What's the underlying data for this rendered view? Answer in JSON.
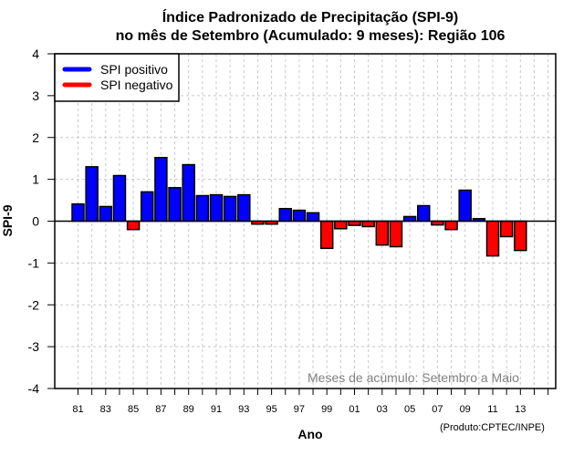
{
  "chart_data": {
    "type": "bar",
    "title": "Índice Padronizado de Precipitação (SPI-9)",
    "subtitle": "no mês de Setembro (Acumulado: 9 meses): Região 106",
    "xlabel": "Ano",
    "ylabel": "SPI-9",
    "ylim": [
      -4,
      4
    ],
    "yticks": [
      "4",
      "3",
      "2",
      "1",
      "0",
      "-1",
      "-2",
      "-3",
      "-4"
    ],
    "xlim": [
      1980,
      2015
    ],
    "xtick_labels": [
      "81",
      "83",
      "85",
      "87",
      "89",
      "91",
      "93",
      "95",
      "97",
      "99",
      "01",
      "03",
      "05",
      "07",
      "09",
      "11",
      "13"
    ],
    "grid": true,
    "legend": {
      "position": "top-left",
      "entries": [
        {
          "label": "SPI positivo",
          "color": "#0000ff"
        },
        {
          "label": "SPI negativo",
          "color": "#ff0000"
        }
      ]
    },
    "annotation": "Meses de acúmulo: Setembro a Maio",
    "credit": "(Produto:CPTEC/INPE)",
    "colors": {
      "positive": "#0000ff",
      "negative": "#ff0000",
      "grid": "#c8c8c8",
      "annotation": "#808080"
    },
    "categories": [
      "1981",
      "1982",
      "1983",
      "1984",
      "1985",
      "1986",
      "1987",
      "1988",
      "1989",
      "1990",
      "1991",
      "1992",
      "1993",
      "1994",
      "1995",
      "1996",
      "1997",
      "1998",
      "1999",
      "2000",
      "2001",
      "2002",
      "2003",
      "2004",
      "2005",
      "2006",
      "2007",
      "2008",
      "2009",
      "2010",
      "2011",
      "2012",
      "2013"
    ],
    "x": [
      1981,
      1982,
      1983,
      1984,
      1985,
      1986,
      1987,
      1988,
      1989,
      1990,
      1991,
      1992,
      1993,
      1994,
      1995,
      1996,
      1997,
      1998,
      1999,
      2000,
      2001,
      2002,
      2003,
      2004,
      2005,
      2006,
      2007,
      2008,
      2009,
      2010,
      2011,
      2012,
      2013
    ],
    "values": [
      0.41,
      1.3,
      0.35,
      1.09,
      -0.2,
      0.7,
      1.52,
      0.8,
      1.35,
      0.61,
      0.63,
      0.59,
      0.63,
      -0.07,
      -0.07,
      0.3,
      0.26,
      0.2,
      -0.65,
      -0.18,
      -0.1,
      -0.13,
      -0.57,
      -0.61,
      0.11,
      0.37,
      -0.09,
      -0.2,
      0.74,
      0.06,
      -0.83,
      -0.37,
      -0.7
    ]
  }
}
